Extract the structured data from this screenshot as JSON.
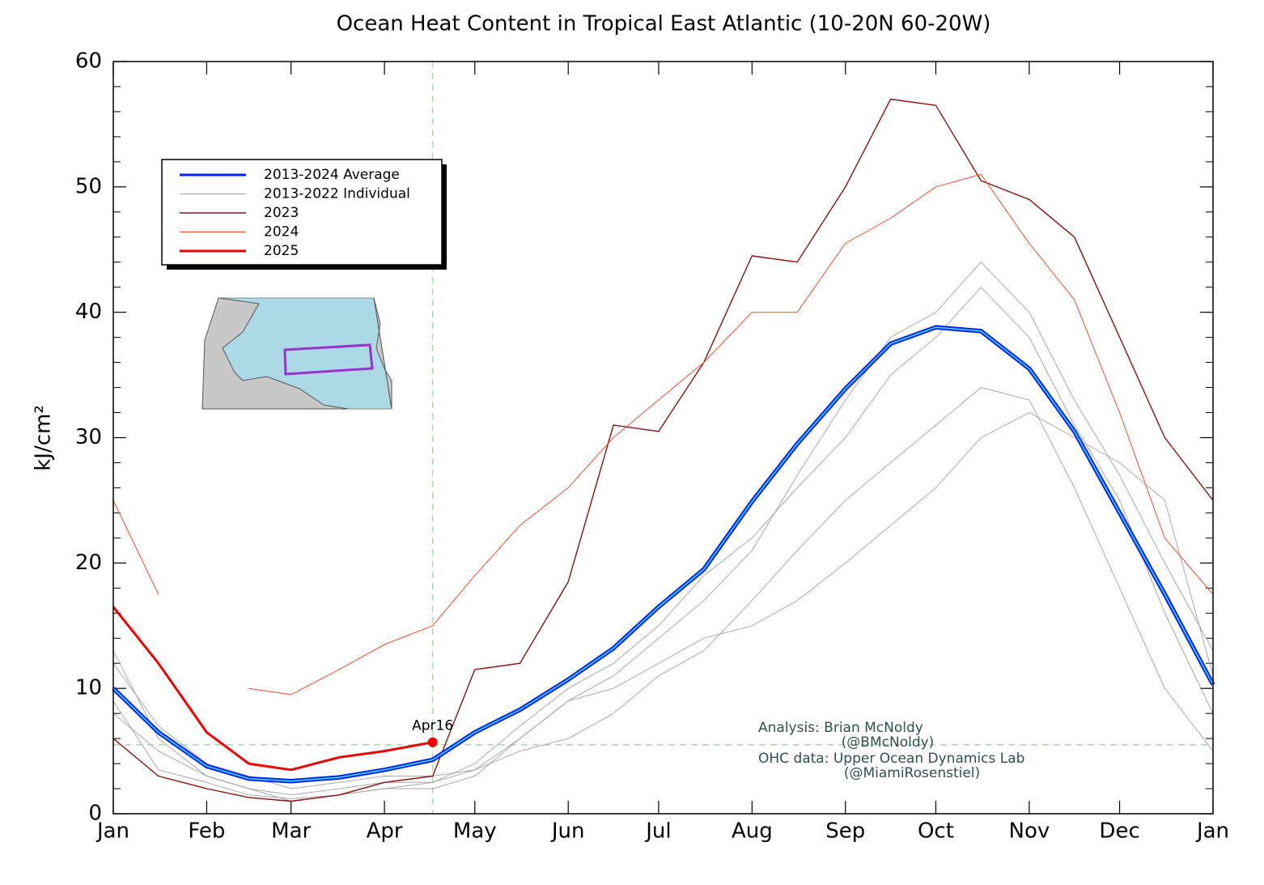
{
  "chart_data": {
    "type": "line",
    "title": "Ocean Heat Content in Tropical East Atlantic (10-20N 60-20W)",
    "y_label": "kJ/cm²",
    "xlim": [
      0,
      365
    ],
    "xticks": [
      {
        "value": 0,
        "label": "Jan"
      },
      {
        "value": 31,
        "label": "Feb"
      },
      {
        "value": 59,
        "label": "Mar"
      },
      {
        "value": 90,
        "label": "Apr"
      },
      {
        "value": 120,
        "label": "May"
      },
      {
        "value": 151,
        "label": "Jun"
      },
      {
        "value": 181,
        "label": "Jul"
      },
      {
        "value": 212,
        "label": "Aug"
      },
      {
        "value": 243,
        "label": "Sep"
      },
      {
        "value": 273,
        "label": "Oct"
      },
      {
        "value": 304,
        "label": "Nov"
      },
      {
        "value": 334,
        "label": "Dec"
      },
      {
        "value": 365,
        "label": "Jan"
      }
    ],
    "ylim": [
      0,
      60
    ],
    "yticks": [
      0,
      10,
      20,
      30,
      40,
      50,
      60
    ],
    "yminorticks": [
      2,
      4,
      6,
      8,
      12,
      14,
      16,
      18,
      22,
      24,
      26,
      28,
      32,
      34,
      36,
      38,
      42,
      44,
      46,
      48,
      52,
      54,
      56,
      58
    ],
    "hline": 5.5,
    "vline": 106,
    "current_label": "Apr16",
    "x": [
      0,
      15,
      31,
      45,
      59,
      75,
      90,
      106,
      120,
      135,
      151,
      166,
      181,
      196,
      212,
      227,
      243,
      258,
      273,
      288,
      304,
      319,
      334,
      349,
      365
    ],
    "series": [
      {
        "name": "2013-2024 Average",
        "color": "#0022ee",
        "values": [
          10,
          6.5,
          3.8,
          2.8,
          2.6,
          2.9,
          3.5,
          4.3,
          6.5,
          8.3,
          10.7,
          13.2,
          16.5,
          19.5,
          24.9,
          29.5,
          33.9,
          37.5,
          38.8,
          38.5,
          35.5,
          30.5,
          24,
          17.5,
          10.3
        ]
      },
      {
        "name": "2013-2022 Individual",
        "color": "#a0a0a0",
        "lines": [
          [
            13,
            6,
            3,
            2,
            1.5,
            2,
            2.5,
            2.5,
            4,
            7,
            10,
            12,
            15,
            19,
            22,
            26,
            30,
            35,
            38,
            42,
            38,
            31,
            25,
            16,
            8
          ],
          [
            9,
            3.5,
            2.5,
            1.5,
            1.2,
            1.5,
            2,
            2.5,
            3.5,
            6,
            9,
            10,
            12,
            14,
            15,
            17,
            20,
            23,
            26,
            30,
            32,
            30,
            28,
            25,
            11
          ],
          [
            12,
            7,
            4,
            3,
            2,
            2.5,
            3,
            3,
            3.5,
            5,
            6,
            8,
            11,
            13,
            17,
            21,
            25,
            28,
            31,
            34,
            33,
            26,
            18,
            10,
            5
          ],
          [
            8,
            5,
            3,
            2,
            1,
            1.5,
            2,
            2,
            3,
            6,
            9,
            11,
            14,
            17,
            21,
            27,
            33,
            38,
            40,
            44,
            40,
            33,
            27,
            20,
            13
          ]
        ]
      },
      {
        "name": "2023",
        "color": "#8b1010",
        "values": [
          6,
          3,
          2,
          1.3,
          1,
          1.5,
          2.5,
          3,
          11.5,
          12,
          18.5,
          31,
          30.5,
          36,
          44.5,
          44,
          50,
          57,
          56.5,
          50.5,
          49,
          46,
          38,
          30,
          25
        ]
      },
      {
        "name": "2024",
        "color": "#f04a30",
        "values": [
          25,
          17.5,
          null,
          10,
          9.5,
          11.5,
          13.5,
          15,
          19,
          23,
          26,
          30,
          33,
          36,
          40,
          40,
          45.5,
          47.5,
          50,
          51,
          45.5,
          41,
          32,
          22,
          17.5
        ]
      },
      {
        "name": "2025",
        "color": "#ee0000",
        "values": [
          16.5,
          12,
          6.5,
          4,
          3.5,
          4.5,
          5,
          5.7,
          null,
          null,
          null,
          null,
          null,
          null,
          null,
          null,
          null,
          null,
          null,
          null,
          null,
          null,
          null,
          null,
          null
        ]
      }
    ],
    "annotations": [
      "Analysis: Brian McNoldy",
      "(@BMcNoldy)",
      "OHC data: Upper Ocean Dynamics Lab",
      "(@MiamiRosenstiel)"
    ]
  }
}
